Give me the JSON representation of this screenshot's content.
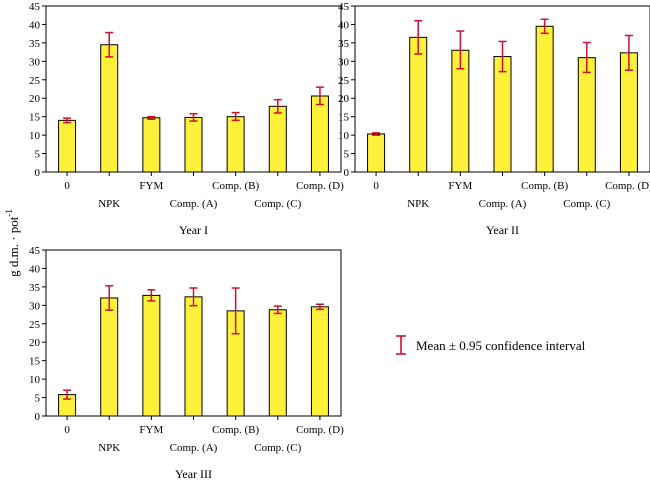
{
  "ylabel": "g d.m. · pot",
  "ylabel_sup": "-1",
  "legend_label": "Mean ± 0.95 confidence interval",
  "colors": {
    "bar": "#fff13a",
    "error": "#d01030",
    "axis": "#000000"
  },
  "chart_data": [
    {
      "type": "bar",
      "title": "Year I",
      "categories": [
        "0",
        "NPK",
        "FYM",
        "Comp. (A)",
        "Comp. (B)",
        "Comp. (C)",
        "Comp. (D)"
      ],
      "values": [
        14.0,
        34.5,
        14.7,
        14.8,
        15.0,
        17.8,
        20.6
      ],
      "err_low": [
        13.4,
        31.2,
        14.3,
        13.8,
        14.0,
        16.0,
        18.3
      ],
      "err_high": [
        14.6,
        37.8,
        15.0,
        15.8,
        16.1,
        19.6,
        23.0
      ],
      "ylim": [
        0,
        45
      ],
      "yticks": [
        0,
        5,
        10,
        15,
        20,
        25,
        30,
        35,
        40,
        45
      ]
    },
    {
      "type": "bar",
      "title": "Year II",
      "categories": [
        "0",
        "NPK",
        "FYM",
        "Comp. (A)",
        "Comp. (B)",
        "Comp. (C)",
        "Comp. (D)"
      ],
      "values": [
        10.3,
        36.5,
        33.0,
        31.3,
        39.5,
        31.0,
        32.3
      ],
      "err_low": [
        10.0,
        32.0,
        28.0,
        27.2,
        37.6,
        27.0,
        27.6
      ],
      "err_high": [
        10.6,
        41.0,
        38.2,
        35.4,
        41.4,
        35.1,
        37.0
      ],
      "ylim": [
        0,
        45
      ],
      "yticks": [
        0,
        5,
        10,
        15,
        20,
        25,
        30,
        35,
        40,
        45
      ]
    },
    {
      "type": "bar",
      "title": "Year III",
      "categories": [
        "0",
        "NPK",
        "FYM",
        "Comp. (A)",
        "Comp. (B)",
        "Comp. (C)",
        "Comp. (D)"
      ],
      "values": [
        5.8,
        32.0,
        32.7,
        32.3,
        28.5,
        28.8,
        29.6
      ],
      "err_low": [
        4.6,
        28.7,
        31.2,
        29.9,
        22.3,
        27.8,
        28.9
      ],
      "err_high": [
        7.0,
        35.3,
        34.2,
        34.7,
        34.7,
        29.8,
        30.3
      ],
      "ylim": [
        0,
        45
      ],
      "yticks": [
        0,
        5,
        10,
        15,
        20,
        25,
        30,
        35,
        40,
        45
      ]
    }
  ]
}
